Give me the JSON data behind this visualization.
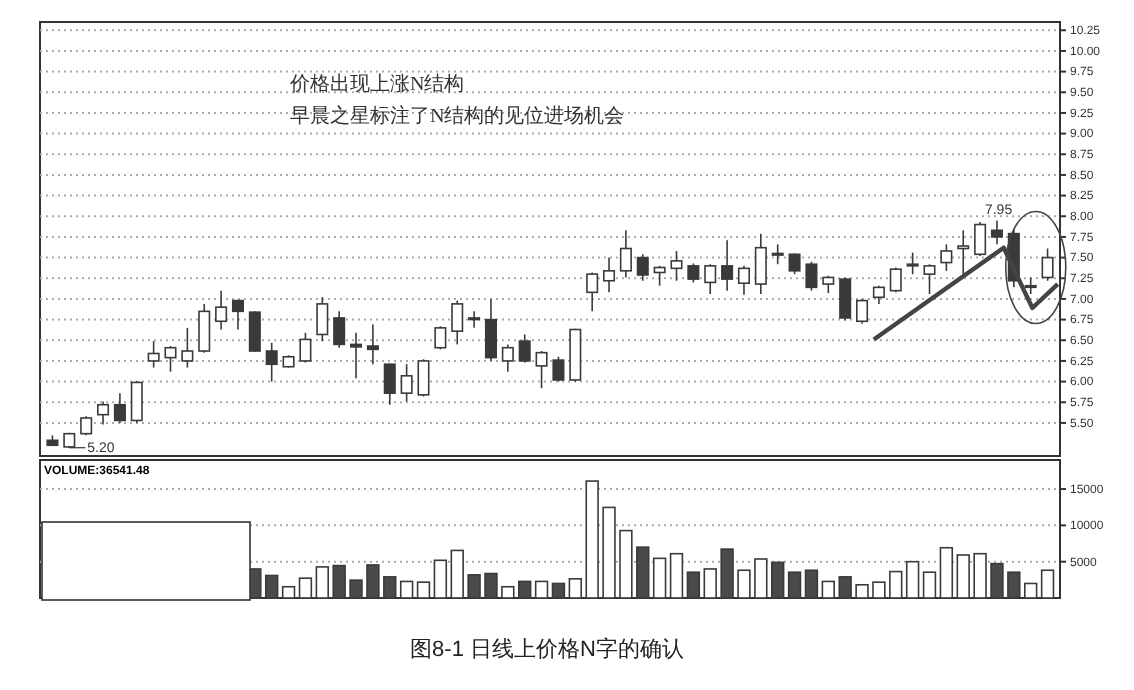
{
  "chart_data": [
    {
      "type": "candlestick",
      "title": "图8-1 日线上价格N字的确认",
      "color": "#3a3a3a",
      "categories": [
        null,
        null,
        null,
        null,
        null,
        null,
        null,
        null,
        null,
        null,
        null,
        null,
        null,
        null,
        null,
        null,
        null,
        null,
        null,
        null,
        null,
        null,
        null,
        null,
        null,
        null,
        null,
        null,
        null,
        null,
        null,
        null,
        null,
        null,
        null,
        null,
        null,
        null,
        null,
        null,
        null,
        null,
        null,
        null,
        null,
        null,
        null,
        null,
        null,
        null,
        null,
        null,
        null,
        null,
        null,
        null,
        null,
        null,
        null,
        null
      ],
      "ohlc": [
        [
          5.29,
          5.35,
          5.22,
          5.23
        ],
        [
          5.21,
          5.38,
          5.2,
          5.37
        ],
        [
          5.37,
          5.58,
          5.35,
          5.56
        ],
        [
          5.6,
          5.76,
          5.48,
          5.72
        ],
        [
          5.72,
          5.86,
          5.5,
          5.53
        ],
        [
          5.53,
          6.0,
          5.5,
          5.99
        ],
        [
          6.25,
          6.49,
          6.17,
          6.34
        ],
        [
          6.29,
          6.43,
          6.12,
          6.41
        ],
        [
          6.25,
          6.65,
          6.17,
          6.37
        ],
        [
          6.37,
          6.94,
          6.35,
          6.85
        ],
        [
          6.73,
          7.1,
          6.63,
          6.9
        ],
        [
          6.98,
          6.99,
          6.63,
          6.85
        ],
        [
          6.84,
          6.85,
          6.36,
          6.37
        ],
        [
          6.37,
          6.47,
          6.0,
          6.21
        ],
        [
          6.18,
          6.32,
          6.17,
          6.3
        ],
        [
          6.25,
          6.59,
          6.23,
          6.51
        ],
        [
          6.57,
          7.02,
          6.49,
          6.94
        ],
        [
          6.77,
          6.85,
          6.41,
          6.45
        ],
        [
          6.45,
          6.59,
          6.04,
          6.42
        ],
        [
          6.43,
          6.69,
          6.21,
          6.39
        ],
        [
          6.21,
          6.22,
          5.72,
          5.86
        ],
        [
          5.86,
          6.21,
          5.76,
          6.07
        ],
        [
          5.84,
          6.27,
          5.82,
          6.25
        ],
        [
          6.41,
          6.67,
          6.39,
          6.65
        ],
        [
          6.61,
          6.98,
          6.45,
          6.94
        ],
        [
          6.76,
          6.85,
          6.65,
          6.77
        ],
        [
          6.75,
          7.0,
          6.25,
          6.29
        ],
        [
          6.25,
          6.45,
          6.12,
          6.41
        ],
        [
          6.49,
          6.57,
          6.23,
          6.25
        ],
        [
          6.19,
          6.37,
          5.92,
          6.35
        ],
        [
          6.26,
          6.3,
          6.0,
          6.02
        ],
        [
          6.02,
          6.64,
          6.0,
          6.63
        ],
        [
          7.08,
          7.32,
          6.85,
          7.3
        ],
        [
          7.22,
          7.5,
          7.08,
          7.34
        ],
        [
          7.34,
          7.83,
          7.26,
          7.61
        ],
        [
          7.5,
          7.54,
          7.22,
          7.29
        ],
        [
          7.32,
          7.4,
          7.16,
          7.38
        ],
        [
          7.37,
          7.58,
          7.22,
          7.46
        ],
        [
          7.4,
          7.43,
          7.2,
          7.24
        ],
        [
          7.2,
          7.42,
          7.06,
          7.4
        ],
        [
          7.4,
          7.71,
          7.1,
          7.24
        ],
        [
          7.19,
          7.4,
          7.05,
          7.37
        ],
        [
          7.18,
          7.79,
          7.06,
          7.62
        ],
        [
          7.54,
          7.66,
          7.42,
          7.55
        ],
        [
          7.54,
          7.55,
          7.3,
          7.34
        ],
        [
          7.42,
          7.45,
          7.1,
          7.14
        ],
        [
          7.18,
          7.28,
          7.07,
          7.26
        ],
        [
          7.24,
          7.26,
          6.74,
          6.77
        ],
        [
          6.73,
          7.0,
          6.7,
          6.98
        ],
        [
          7.02,
          7.16,
          6.94,
          7.14
        ],
        [
          7.1,
          7.38,
          7.08,
          7.36
        ],
        [
          7.4,
          7.56,
          7.3,
          7.42
        ],
        [
          7.3,
          7.42,
          7.06,
          7.4
        ],
        [
          7.44,
          7.66,
          7.34,
          7.58
        ],
        [
          7.61,
          7.83,
          7.3,
          7.64
        ],
        [
          7.54,
          7.93,
          7.52,
          7.9
        ],
        [
          7.83,
          7.95,
          7.66,
          7.75
        ],
        [
          7.79,
          7.85,
          7.14,
          7.22
        ],
        [
          7.16,
          7.26,
          7.06,
          7.15
        ],
        [
          7.26,
          7.61,
          7.22,
          7.5
        ]
      ],
      "ylim": [
        5.1,
        10.35
      ],
      "yticks": [
        {
          "value": 5.5,
          "label": "5.50"
        },
        {
          "value": 5.75,
          "label": "5.75"
        },
        {
          "value": 6,
          "label": "6.00"
        },
        {
          "value": 6.25,
          "label": "6.25"
        },
        {
          "value": 6.5,
          "label": "6.50"
        },
        {
          "value": 6.75,
          "label": "6.75"
        },
        {
          "value": 7,
          "label": "7.00"
        },
        {
          "value": 7.25,
          "label": "7.25"
        },
        {
          "value": 7.5,
          "label": "7.50"
        },
        {
          "value": 7.75,
          "label": "7.75"
        },
        {
          "value": 8,
          "label": "8.00"
        },
        {
          "value": 8.25,
          "label": "8.25"
        },
        {
          "value": 8.5,
          "label": "8.50"
        },
        {
          "value": 8.75,
          "label": "8.75"
        },
        {
          "value": 9,
          "label": "9.00"
        },
        {
          "value": 9.25,
          "label": "9.25"
        },
        {
          "value": 9.5,
          "label": "9.50"
        },
        {
          "value": 9.75,
          "label": "9.75"
        },
        {
          "value": 10,
          "label": "10.00"
        },
        {
          "value": 10.25,
          "label": "10.25"
        }
      ],
      "grid": true,
      "tick_labels": "y",
      "annotations": [
        "价格出现上涨N结构",
        "早晨之星标注了N结构的见位进场机会",
        "7.95",
        "5.20"
      ]
    },
    {
      "type": "bar",
      "categories": [
        null,
        null,
        null,
        null,
        null,
        null,
        null,
        null,
        null,
        null,
        null,
        null,
        null,
        null,
        null,
        null,
        null,
        null,
        null,
        null,
        null,
        null,
        null,
        null,
        null,
        null,
        null,
        null,
        null,
        null,
        null,
        null,
        null,
        null,
        null,
        null,
        null,
        null,
        null,
        null,
        null,
        null,
        null,
        null,
        null,
        null,
        null,
        null,
        null,
        null,
        null,
        null,
        null,
        null,
        null,
        null,
        null,
        null,
        null,
        null
      ],
      "values": [
        null,
        null,
        null,
        null,
        null,
        null,
        null,
        null,
        null,
        null,
        null,
        null,
        4000,
        3100,
        1550,
        2730,
        4280,
        4460,
        2460,
        4550,
        2910,
        2280,
        2180,
        5190,
        6550,
        3190,
        3370,
        1550,
        2280,
        2280,
        2000,
        2640,
        16100,
        12470,
        9280,
        7000,
        5460,
        6100,
        3550,
        4000,
        6730,
        3820,
        5370,
        4910,
        3550,
        3820,
        2280,
        2910,
        1820,
        2180,
        3640,
        5000,
        3550,
        6920,
        5920,
        6100,
        4730,
        3550,
        2000,
        3820
      ],
      "colors": [
        null,
        null,
        null,
        null,
        null,
        null,
        null,
        null,
        null,
        null,
        null,
        null,
        "#4a4a4a",
        "#4a4a4a",
        "#ffffff",
        "#ffffff",
        "#ffffff",
        "#4a4a4a",
        "#4a4a4a",
        "#4a4a4a",
        "#4a4a4a",
        "#ffffff",
        "#ffffff",
        "#ffffff",
        "#ffffff",
        "#4a4a4a",
        "#4a4a4a",
        "#ffffff",
        "#4a4a4a",
        "#ffffff",
        "#4a4a4a",
        "#ffffff",
        "#ffffff",
        "#ffffff",
        "#ffffff",
        "#4a4a4a",
        "#ffffff",
        "#ffffff",
        "#4a4a4a",
        "#ffffff",
        "#4a4a4a",
        "#ffffff",
        "#ffffff",
        "#4a4a4a",
        "#4a4a4a",
        "#4a4a4a",
        "#ffffff",
        "#4a4a4a",
        "#ffffff",
        "#ffffff",
        "#ffffff",
        "#ffffff",
        "#ffffff",
        "#ffffff",
        "#ffffff",
        "#ffffff",
        "#4a4a4a",
        "#4a4a4a",
        "#ffffff",
        "#ffffff"
      ],
      "ylim": [
        0,
        19000
      ],
      "yticks": [
        5000,
        10000,
        15000
      ],
      "grid": true,
      "tick_labels": "y",
      "annotations": [
        "VOLUME:36541.48"
      ]
    }
  ]
}
